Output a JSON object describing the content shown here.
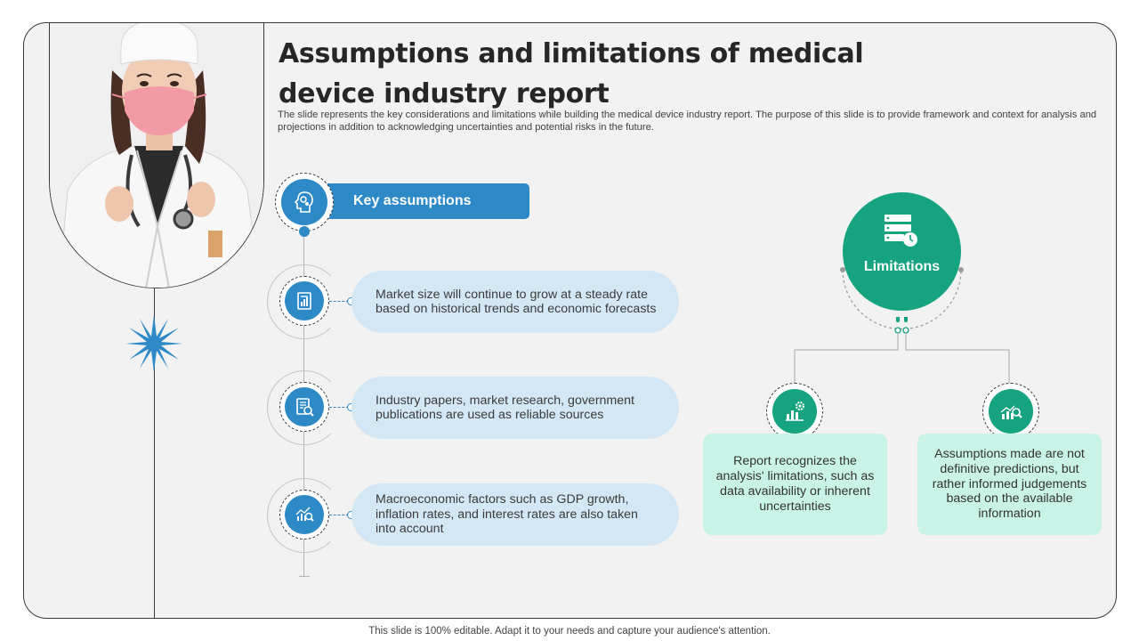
{
  "slide": {
    "title": "Assumptions and limitations of medical device industry report",
    "subtitle": "The slide represents the key considerations and limitations while building the medical device industry report. The purpose of this slide is to provide framework and context for analysis and projections in addition to acknowledging uncertainties and potential risks in the future.",
    "footer": "This slide is 100% editable. Adapt it to your needs and capture your audience's attention."
  },
  "key_assumptions": {
    "heading": "Key assumptions",
    "heading_icon": "head-gears-icon",
    "items": [
      {
        "icon": "chart-document-icon",
        "text": "Market size will continue to grow at a steady rate based on historical trends and economic forecasts"
      },
      {
        "icon": "document-search-icon",
        "text": "Industry papers, market research, government publications are used as reliable sources"
      },
      {
        "icon": "chart-magnifier-icon",
        "text": "Macroeconomic factors such as GDP growth, inflation rates, and interest rates are also taken into account"
      }
    ]
  },
  "limitations": {
    "heading": "Limitations",
    "heading_icon": "server-clock-icon",
    "items": [
      {
        "icon": "chart-gear-icon",
        "text": "Report recognizes the analysis' limitations, such as data availability or inherent uncertainties"
      },
      {
        "icon": "chart-search-icon",
        "text": "Assumptions made are not definitive predictions, but rather informed judgements based on the available information"
      }
    ]
  },
  "colors": {
    "blue": "#2e8ac6",
    "light_blue": "#d4e7f5",
    "green": "#16a37f",
    "light_green": "#c8f3e6"
  }
}
